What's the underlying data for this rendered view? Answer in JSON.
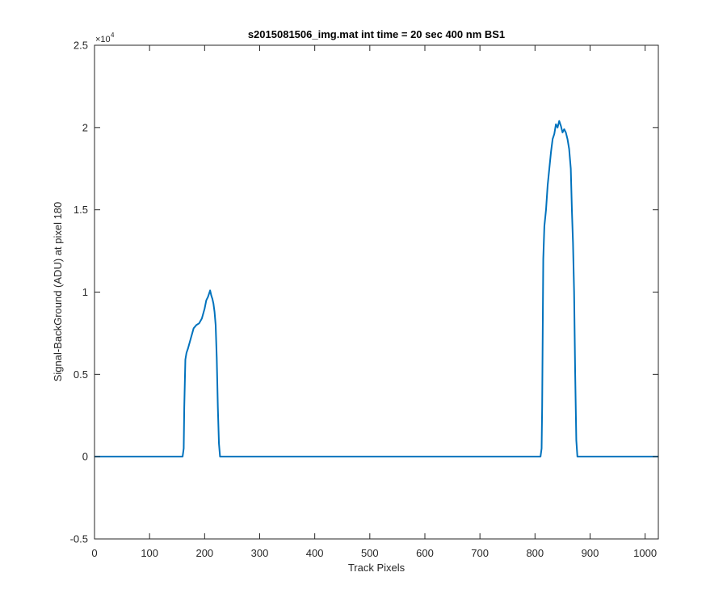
{
  "chart_data": {
    "type": "line",
    "title": "s2015081506_img.mat int time = 20 sec  400 nm BS1",
    "xlabel": "Track Pixels",
    "ylabel": "Signal-BackGround (ADU) at pixel 180",
    "xlim": [
      0,
      1024
    ],
    "ylim": [
      -5000,
      25000
    ],
    "x_ticks": [
      0,
      100,
      200,
      300,
      400,
      500,
      600,
      700,
      800,
      900,
      1000
    ],
    "x_tick_labels": [
      "0",
      "100",
      "200",
      "300",
      "400",
      "500",
      "600",
      "700",
      "800",
      "900",
      "1000"
    ],
    "y_ticks": [
      -5000,
      0,
      5000,
      10000,
      15000,
      20000,
      25000
    ],
    "y_tick_labels": [
      "-0.5",
      "0",
      "0.5",
      "1",
      "1.5",
      "2",
      "2.5"
    ],
    "y_exponent_label": "×10",
    "y_exponent_power": "4",
    "grid": false,
    "box": true,
    "series": [
      {
        "color": "#0072BD",
        "x": [
          0,
          100,
          160,
          162,
          163,
          165,
          167,
          170,
          175,
          180,
          185,
          190,
          195,
          200,
          203,
          206,
          208,
          210,
          212,
          214,
          216,
          218,
          220,
          222,
          224,
          226,
          228,
          230,
          300,
          400,
          500,
          600,
          700,
          800,
          810,
          812,
          813,
          815,
          817,
          820,
          823,
          826,
          829,
          832,
          835,
          838,
          841,
          844,
          847,
          850,
          853,
          856,
          859,
          862,
          865,
          867,
          869,
          871,
          873,
          875,
          877,
          880,
          950,
          1024
        ],
        "y": [
          0,
          0,
          0,
          500,
          3000,
          5900,
          6300,
          6600,
          7200,
          7800,
          8000,
          8100,
          8400,
          9000,
          9500,
          9700,
          9900,
          10100,
          9800,
          9600,
          9300,
          8800,
          8000,
          6000,
          3000,
          800,
          0,
          0,
          0,
          0,
          0,
          0,
          0,
          0,
          0,
          500,
          3000,
          12000,
          14000,
          15000,
          16500,
          17500,
          18500,
          19300,
          19600,
          20200,
          20000,
          20400,
          20100,
          19700,
          19900,
          19700,
          19300,
          18700,
          17500,
          15000,
          13000,
          10000,
          5000,
          1000,
          0,
          0,
          0,
          0
        ]
      }
    ]
  }
}
